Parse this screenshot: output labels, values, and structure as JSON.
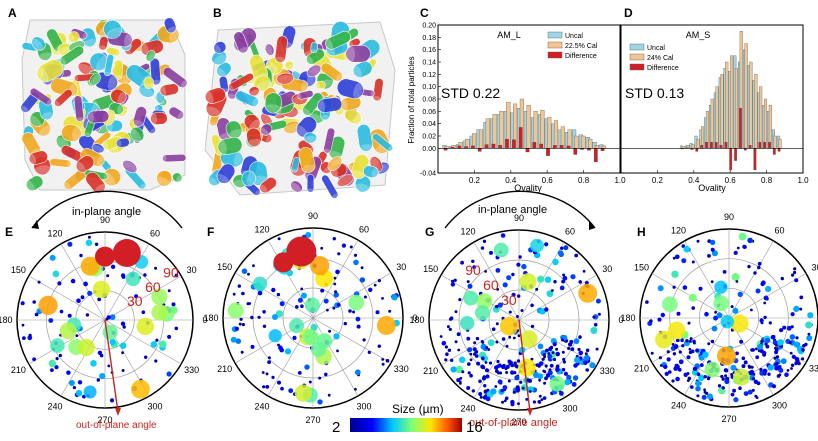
{
  "panels": {
    "a": "A",
    "b": "B",
    "c": "C",
    "d": "D",
    "e": "E",
    "f": "F",
    "g": "G",
    "h": "H"
  },
  "colors": {
    "uncal": "#9fd6e6",
    "cal": "#f3c48f",
    "difference": "#d21f26",
    "accent_red": "#c8261f",
    "dot_blue": "#2b2bd6",
    "ring": "#9b9b9b"
  },
  "chart_data": [
    {
      "id": "C",
      "type": "bar",
      "title": "AM_L",
      "xlabel": "Ovality",
      "ylabel": "Fraction of total particles",
      "xlim": [
        0.0,
        1.0
      ],
      "ylim": [
        -0.04,
        0.2
      ],
      "xticks": [
        "0.2",
        "0.4",
        "0.6",
        "0.8",
        "1.0"
      ],
      "yticks": [
        "-0.04",
        "0.00",
        "0.02",
        "0.04",
        "0.06",
        "0.08",
        "0.10",
        "0.12",
        "0.14",
        "0.16",
        "0.18",
        "0.20"
      ],
      "annotation": "STD 0.22",
      "legend": [
        "Uncal",
        "22.5% Cal",
        "Difference"
      ],
      "bin_start": 0.025,
      "bin_width": 0.0375,
      "series": [
        {
          "name": "Uncal",
          "values": [
            0.005,
            0.003,
            0.006,
            0.012,
            0.02,
            0.03,
            0.042,
            0.048,
            0.055,
            0.06,
            0.058,
            0.065,
            0.06,
            0.05,
            0.055,
            0.048,
            0.04,
            0.03,
            0.026,
            0.03,
            0.022,
            0.018,
            0.01,
            0.006
          ]
        },
        {
          "name": "22.5% Cal",
          "values": [
            0.003,
            0.005,
            0.01,
            0.015,
            0.024,
            0.03,
            0.048,
            0.055,
            0.06,
            0.075,
            0.072,
            0.08,
            0.07,
            0.06,
            0.062,
            0.05,
            0.045,
            0.035,
            0.03,
            0.02,
            0.02,
            0.015,
            0.005,
            0.004
          ]
        },
        {
          "name": "Difference",
          "values": [
            -0.003,
            0.002,
            0.004,
            0.003,
            0.004,
            -0.005,
            0.006,
            0.007,
            0.005,
            0.015,
            0.014,
            0.034,
            -0.006,
            0.01,
            0.007,
            -0.012,
            0.005,
            0.005,
            0.004,
            -0.01,
            -0.002,
            -0.003,
            -0.022,
            -0.004
          ]
        }
      ]
    },
    {
      "id": "D",
      "type": "bar",
      "title": "AM_S",
      "xlabel": "Ovality",
      "ylabel": "",
      "xlim": [
        0.0,
        1.0
      ],
      "ylim": [
        -0.04,
        0.2
      ],
      "xticks": [
        "0.2",
        "0.4",
        "0.6",
        "0.8",
        "1.0"
      ],
      "annotation": "STD 0.13",
      "legend": [
        "Uncal",
        "24% Cal",
        "Difference"
      ],
      "bin_start": 0.325,
      "bin_width": 0.0266,
      "series": [
        {
          "name": "Uncal",
          "values": [
            0.004,
            0.004,
            0.008,
            0.02,
            0.03,
            0.05,
            0.07,
            0.09,
            0.115,
            0.13,
            0.125,
            0.15,
            0.14,
            0.16,
            0.135,
            0.11,
            0.09,
            0.07,
            0.06,
            0.03,
            0.02
          ]
        },
        {
          "name": "24% Cal",
          "values": [
            0.003,
            0.005,
            0.006,
            0.015,
            0.035,
            0.06,
            0.08,
            0.1,
            0.12,
            0.14,
            0.15,
            0.13,
            0.19,
            0.17,
            0.14,
            0.12,
            0.1,
            0.08,
            0.07,
            0.02,
            0.015
          ]
        },
        {
          "name": "Difference",
          "values": [
            -0.001,
            0.001,
            -0.002,
            -0.005,
            0.005,
            0.01,
            0.01,
            0.01,
            0.005,
            0.01,
            -0.035,
            -0.02,
            0.065,
            -0.003,
            0.005,
            -0.035,
            0.01,
            0.01,
            0.01,
            -0.01,
            -0.005
          ]
        }
      ]
    },
    {
      "id": "E",
      "type": "scatter",
      "title": "in-plane angle",
      "xlabel": "out-of-plane angle",
      "angles": [
        "90",
        "60",
        "30",
        "0",
        "330",
        "300",
        "270",
        "240",
        "210",
        "180",
        "150",
        "120"
      ],
      "radial_labels": [
        "90",
        "60",
        "30"
      ],
      "seed": 11,
      "count": 100,
      "big_count": 18
    },
    {
      "id": "F",
      "type": "scatter",
      "angles": [
        "90",
        "60",
        "30",
        "0",
        "330",
        "300",
        "270",
        "240",
        "210",
        "180",
        "150",
        "120"
      ],
      "seed": 23,
      "count": 130,
      "big_count": 20
    },
    {
      "id": "G",
      "type": "scatter",
      "title": "in-plane angle",
      "xlabel": "out-of-plane angle",
      "angles": [
        "90",
        "60",
        "30",
        "0",
        "330",
        "300",
        "270",
        "240",
        "210",
        "180",
        "150",
        "120"
      ],
      "radial_labels": [
        "90",
        "60",
        "30"
      ],
      "seed": 37,
      "count": 330,
      "big_count": 12
    },
    {
      "id": "H",
      "type": "scatter",
      "angles": [
        "90",
        "60",
        "30",
        "0",
        "330",
        "300",
        "270",
        "240",
        "210",
        "180",
        "150",
        "120"
      ],
      "seed": 41,
      "count": 300,
      "big_count": 10
    }
  ],
  "colorbar": {
    "label": "Size (µm)",
    "min": "2",
    "max": "16"
  }
}
